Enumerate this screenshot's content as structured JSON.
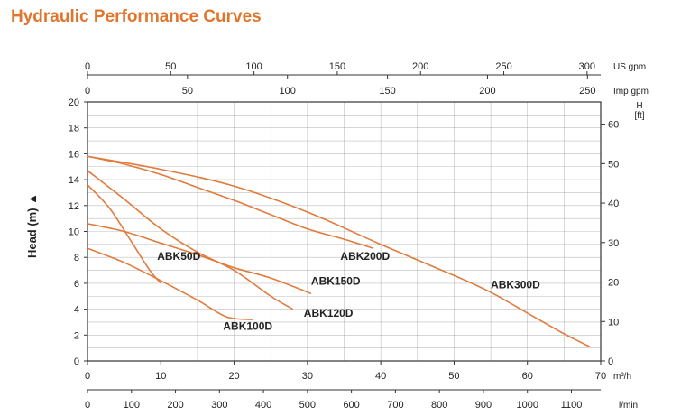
{
  "title": "Hydraulic Performance Curves",
  "chart_data": {
    "type": "line",
    "title": "Hydraulic Performance Curves",
    "colors": {
      "curve": "#e07b3c",
      "grid": "#8a8a8a",
      "axis": "#333333"
    },
    "y_left": {
      "label": "Head (m)",
      "marker": "▲",
      "range": [
        0,
        20
      ],
      "ticks": [
        0,
        2,
        4,
        6,
        8,
        10,
        12,
        14,
        16,
        18,
        20
      ]
    },
    "y_right": {
      "label_line1": "H",
      "label_line2": "[ft]",
      "range_ft": [
        0,
        65.6
      ],
      "ticks": [
        0,
        10,
        20,
        30,
        40,
        50,
        60
      ]
    },
    "x_m3h": {
      "unit": "m³/h",
      "range": [
        0,
        70
      ],
      "ticks": [
        0,
        10,
        20,
        30,
        40,
        50,
        60,
        70
      ]
    },
    "x_lmin": {
      "unit": "l/min",
      "ticks": [
        0,
        100,
        200,
        300,
        400,
        500,
        600,
        700,
        800,
        900,
        1000,
        1100
      ]
    },
    "x_usgpm": {
      "unit": "US gpm",
      "ticks": [
        0,
        50,
        100,
        150,
        200,
        250,
        300
      ]
    },
    "x_impgpm": {
      "unit": "Imp gpm",
      "ticks": [
        0,
        50,
        100,
        150,
        200,
        250
      ]
    },
    "series": [
      {
        "name": "ABK50D",
        "label": "ABK50D",
        "points": [
          [
            0,
            13.6
          ],
          [
            3,
            11.8
          ],
          [
            6,
            9.2
          ],
          [
            8.5,
            7.0
          ],
          [
            10,
            6.0
          ]
        ]
      },
      {
        "name": "ABK100D",
        "label": "ABK100D",
        "points": [
          [
            0,
            8.7
          ],
          [
            5,
            7.6
          ],
          [
            10,
            6.2
          ],
          [
            15,
            4.7
          ],
          [
            19,
            3.4
          ],
          [
            22.5,
            3.2
          ]
        ]
      },
      {
        "name": "ABK120D",
        "label": "ABK120D",
        "points": [
          [
            0,
            14.7
          ],
          [
            5,
            12.5
          ],
          [
            10,
            10.2
          ],
          [
            15,
            8.4
          ],
          [
            20,
            7.0
          ],
          [
            25,
            5.0
          ],
          [
            28,
            4.0
          ]
        ]
      },
      {
        "name": "ABK150D",
        "label": "ABK150D",
        "points": [
          [
            0,
            10.6
          ],
          [
            5,
            10.0
          ],
          [
            10,
            9.1
          ],
          [
            15,
            8.2
          ],
          [
            20,
            7.2
          ],
          [
            25,
            6.4
          ],
          [
            30.5,
            5.2
          ]
        ]
      },
      {
        "name": "ABK200D",
        "label": "ABK200D",
        "points": [
          [
            0,
            15.8
          ],
          [
            5,
            15.2
          ],
          [
            10,
            14.4
          ],
          [
            15,
            13.4
          ],
          [
            20,
            12.4
          ],
          [
            25,
            11.3
          ],
          [
            30,
            10.2
          ],
          [
            35,
            9.4
          ],
          [
            39,
            8.7
          ]
        ]
      },
      {
        "name": "ABK300D",
        "label": "ABK300D",
        "points": [
          [
            0,
            15.8
          ],
          [
            10,
            14.8
          ],
          [
            20,
            13.5
          ],
          [
            30,
            11.5
          ],
          [
            40,
            9.0
          ],
          [
            50,
            6.6
          ],
          [
            55,
            5.3
          ],
          [
            60,
            3.7
          ],
          [
            65,
            2.1
          ],
          [
            68.5,
            1.1
          ]
        ]
      }
    ],
    "labels_at": [
      {
        "series": "ABK50D",
        "x": 9.5,
        "y": 7.8,
        "anchor": "start"
      },
      {
        "series": "ABK100D",
        "x": 18.5,
        "y": 2.4,
        "anchor": "start"
      },
      {
        "series": "ABK120D",
        "x": 29.5,
        "y": 3.4,
        "anchor": "start"
      },
      {
        "series": "ABK150D",
        "x": 30.5,
        "y": 5.9,
        "anchor": "start"
      },
      {
        "series": "ABK200D",
        "x": 34.5,
        "y": 7.8,
        "anchor": "start"
      },
      {
        "series": "ABK300D",
        "x": 55,
        "y": 5.6,
        "anchor": "start"
      }
    ]
  }
}
